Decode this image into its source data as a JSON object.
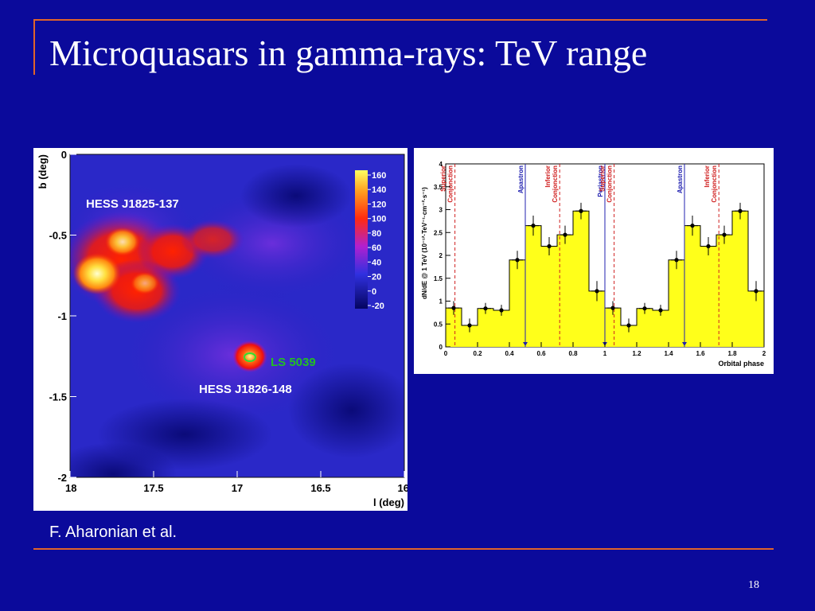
{
  "slide": {
    "title": "Microquasars in gamma-rays: TeV range",
    "caption": "F. Aharonian et al.",
    "slide_number": "18",
    "colors": {
      "background": "#0b0a9b",
      "rule": "#e0642a",
      "text": "#ffffff"
    }
  },
  "chart_data": [
    {
      "type": "heatmap",
      "xlabel": "l (deg)",
      "ylabel": "b (deg)",
      "xlim": [
        18,
        16
      ],
      "ylim": [
        -2,
        0
      ],
      "x_ticks": [
        "18",
        "17.5",
        "17",
        "16.5",
        "16"
      ],
      "y_ticks": [
        "0",
        "-0.5",
        "-1",
        "-1.5",
        "-2"
      ],
      "colorbar_ticks": [
        "160",
        "140",
        "120",
        "100",
        "80",
        "60",
        "40",
        "20",
        "0",
        "-20"
      ],
      "annotations": [
        {
          "text": "HESS J1825-137",
          "color": "#ffffff"
        },
        {
          "text": "LS 5039",
          "color": "#22c022"
        },
        {
          "text": "HESS J1826-148",
          "color": "#ffffff"
        }
      ]
    },
    {
      "type": "bar",
      "xlabel": "Orbital phase",
      "ylabel_html": "dN/dE @ 1 TeV (10⁻¹²·TeV⁻¹·cm⁻²·s⁻¹)",
      "xlim": [
        0,
        2
      ],
      "ylim": [
        0,
        4
      ],
      "x_ticks": [
        "0",
        "0.2",
        "0.4",
        "0.6",
        "0.8",
        "1",
        "1.2",
        "1.4",
        "1.6",
        "1.8",
        "2"
      ],
      "y_ticks": [
        "0",
        "0.5",
        "1",
        "1.5",
        "2",
        "2.5",
        "3",
        "3.5",
        "4"
      ],
      "bin_edges": [
        0,
        0.1,
        0.2,
        0.3,
        0.4,
        0.5,
        0.6,
        0.7,
        0.8,
        0.9,
        1.0,
        1.1,
        1.2,
        1.3,
        1.4,
        1.5,
        1.6,
        1.7,
        1.8,
        1.9,
        2.0
      ],
      "values": [
        0.85,
        0.47,
        0.84,
        0.8,
        1.9,
        2.65,
        2.2,
        2.45,
        2.97,
        1.22,
        0.85,
        0.47,
        0.84,
        0.8,
        1.9,
        2.65,
        2.2,
        2.45,
        2.97,
        1.22
      ],
      "errors": [
        0.15,
        0.15,
        0.12,
        0.12,
        0.2,
        0.22,
        0.2,
        0.2,
        0.18,
        0.22,
        0.15,
        0.15,
        0.12,
        0.12,
        0.2,
        0.22,
        0.2,
        0.2,
        0.18,
        0.22
      ],
      "markers": [
        {
          "x": 0.058,
          "label": "Superior Conjonction",
          "style": "dashed",
          "color": "#d02020"
        },
        {
          "x": 0.5,
          "label": "Apastron",
          "style": "solid",
          "color": "#2020b0"
        },
        {
          "x": 0.716,
          "label": "Inferior Conjonction",
          "style": "dashed",
          "color": "#d02020"
        },
        {
          "x": 1.0,
          "label": "Periastron",
          "style": "solid",
          "color": "#2020b0"
        },
        {
          "x": 1.058,
          "label": "Superior Conjonction",
          "style": "dashed",
          "color": "#d02020"
        },
        {
          "x": 1.5,
          "label": "Apastron",
          "style": "solid",
          "color": "#2020b0"
        },
        {
          "x": 1.716,
          "label": "Inferior Conjonction",
          "style": "dashed",
          "color": "#d02020"
        }
      ],
      "bar_color": "#ffff1a"
    }
  ]
}
